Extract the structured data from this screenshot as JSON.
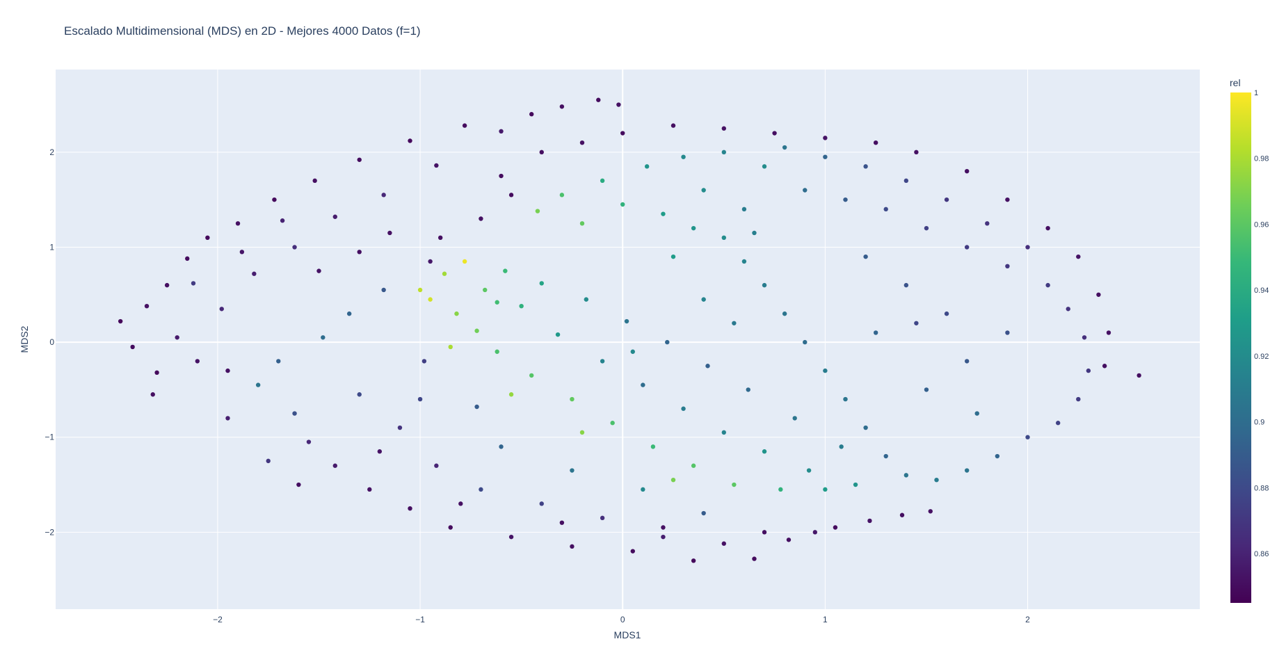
{
  "chart_data": {
    "type": "scatter",
    "title": "Escalado Multidimensional (MDS) en 2D - Mejores 4000 Datos (f=1)",
    "xlabel": "MDS1",
    "ylabel": "MDS2",
    "xlim": [
      -2.8,
      2.85
    ],
    "ylim": [
      -2.81,
      2.87
    ],
    "x_ticks": [
      {
        "value": -2,
        "label": "−2"
      },
      {
        "value": -1,
        "label": "−1"
      },
      {
        "value": 0,
        "label": "0"
      },
      {
        "value": 1,
        "label": "1"
      },
      {
        "value": 2,
        "label": "2"
      }
    ],
    "y_ticks": [
      {
        "value": -2,
        "label": "−2"
      },
      {
        "value": -1,
        "label": "−1"
      },
      {
        "value": 0,
        "label": "0"
      },
      {
        "value": 1,
        "label": "1"
      },
      {
        "value": 2,
        "label": "2"
      }
    ],
    "grid": true,
    "colorbar": {
      "title": "rel",
      "colorscale": "viridis",
      "range": [
        0.845,
        1.0
      ],
      "ticks": [
        {
          "value": 1.0,
          "label": "1"
        },
        {
          "value": 0.98,
          "label": "0.98"
        },
        {
          "value": 0.96,
          "label": "0.96"
        },
        {
          "value": 0.94,
          "label": "0.94"
        },
        {
          "value": 0.92,
          "label": "0.92"
        },
        {
          "value": 0.9,
          "label": "0.9"
        },
        {
          "value": 0.88,
          "label": "0.88"
        },
        {
          "value": 0.86,
          "label": "0.86"
        }
      ]
    },
    "series": [
      {
        "columns": [
          "x",
          "y",
          "rel"
        ],
        "points": [
          [
            -2.48,
            0.22,
            0.848
          ],
          [
            -2.42,
            -0.05,
            0.85
          ],
          [
            -2.35,
            0.38,
            0.852
          ],
          [
            -2.3,
            -0.32,
            0.849
          ],
          [
            -2.25,
            0.6,
            0.851
          ],
          [
            -2.2,
            0.05,
            0.856
          ],
          [
            -2.15,
            0.88,
            0.85
          ],
          [
            -2.1,
            -0.2,
            0.853
          ],
          [
            -2.05,
            1.1,
            0.849
          ],
          [
            -1.98,
            0.35,
            0.862
          ],
          [
            -1.9,
            1.25,
            0.852
          ],
          [
            -1.82,
            0.72,
            0.858
          ],
          [
            -1.72,
            1.5,
            0.849
          ],
          [
            -1.62,
            1.0,
            0.866
          ],
          [
            -1.52,
            1.7,
            0.851
          ],
          [
            -1.42,
            1.32,
            0.857
          ],
          [
            -1.3,
            1.92,
            0.85
          ],
          [
            -1.18,
            1.55,
            0.862
          ],
          [
            -1.05,
            2.12,
            0.849
          ],
          [
            -0.92,
            1.86,
            0.853
          ],
          [
            -0.78,
            2.28,
            0.85
          ],
          [
            -0.6,
            2.22,
            0.856
          ],
          [
            -0.45,
            2.4,
            0.849
          ],
          [
            -0.3,
            2.48,
            0.851
          ],
          [
            -0.12,
            2.55,
            0.85
          ],
          [
            -0.02,
            2.5,
            0.852
          ],
          [
            -2.32,
            -0.55,
            0.851
          ],
          [
            -2.12,
            0.62,
            0.872
          ],
          [
            -1.88,
            0.95,
            0.854
          ],
          [
            -1.68,
            1.28,
            0.86
          ],
          [
            -1.8,
            -0.45,
            0.905
          ],
          [
            -1.7,
            -0.2,
            0.892
          ],
          [
            -1.62,
            -0.75,
            0.884
          ],
          [
            -1.55,
            -1.05,
            0.862
          ],
          [
            -1.48,
            0.05,
            0.9
          ],
          [
            -1.42,
            -1.3,
            0.856
          ],
          [
            -1.35,
            0.3,
            0.895
          ],
          [
            -1.3,
            -0.55,
            0.88
          ],
          [
            -1.25,
            -1.55,
            0.852
          ],
          [
            -1.18,
            0.55,
            0.888
          ],
          [
            -1.1,
            -0.9,
            0.868
          ],
          [
            -1.05,
            -1.75,
            0.851
          ],
          [
            -0.98,
            -0.2,
            0.874
          ],
          [
            -0.92,
            -1.3,
            0.861
          ],
          [
            -0.85,
            -1.95,
            0.85
          ],
          [
            -0.7,
            -1.55,
            0.88
          ],
          [
            -0.55,
            -2.05,
            0.853
          ],
          [
            -0.4,
            -1.7,
            0.876
          ],
          [
            -0.25,
            -2.15,
            0.851
          ],
          [
            -0.1,
            -1.85,
            0.866
          ],
          [
            0.05,
            -2.2,
            0.85
          ],
          [
            0.2,
            -2.05,
            0.858
          ],
          [
            0.35,
            -2.3,
            0.849
          ],
          [
            0.5,
            -2.12,
            0.852
          ],
          [
            0.65,
            -2.28,
            0.85
          ],
          [
            0.82,
            -2.08,
            0.851
          ],
          [
            0.95,
            -2.0,
            0.855
          ],
          [
            1.05,
            -1.95,
            0.85
          ],
          [
            1.22,
            -1.88,
            0.853
          ],
          [
            1.38,
            -1.82,
            0.851
          ],
          [
            1.52,
            -1.78,
            0.852
          ],
          [
            -1.95,
            -0.8,
            0.858
          ],
          [
            -1.6,
            -1.5,
            0.851
          ],
          [
            -1.75,
            -1.25,
            0.87
          ],
          [
            -0.72,
            -0.68,
            0.89
          ],
          [
            -1.0,
            0.55,
            0.985
          ],
          [
            -0.95,
            0.45,
            0.99
          ],
          [
            -0.88,
            0.72,
            0.978
          ],
          [
            -0.82,
            0.3,
            0.972
          ],
          [
            -0.78,
            0.85,
            0.996
          ],
          [
            -0.72,
            0.12,
            0.966
          ],
          [
            -0.68,
            0.55,
            0.96
          ],
          [
            -0.62,
            -0.1,
            0.955
          ],
          [
            -0.58,
            0.75,
            0.95
          ],
          [
            -0.5,
            0.38,
            0.944
          ],
          [
            -0.45,
            -0.35,
            0.958
          ],
          [
            -0.4,
            0.62,
            0.935
          ],
          [
            -0.32,
            0.08,
            0.928
          ],
          [
            -0.25,
            -0.6,
            0.962
          ],
          [
            -0.18,
            0.45,
            0.92
          ],
          [
            -0.1,
            -0.2,
            0.915
          ],
          [
            -0.05,
            -0.85,
            0.955
          ],
          [
            0.02,
            0.22,
            0.905
          ],
          [
            0.1,
            -0.45,
            0.9
          ],
          [
            0.15,
            -1.1,
            0.95
          ],
          [
            0.22,
            0.0,
            0.895
          ],
          [
            0.3,
            -0.7,
            0.91
          ],
          [
            0.35,
            -1.3,
            0.958
          ],
          [
            0.42,
            -0.25,
            0.892
          ],
          [
            0.5,
            -0.95,
            0.915
          ],
          [
            0.55,
            -1.5,
            0.96
          ],
          [
            0.62,
            -0.5,
            0.898
          ],
          [
            0.7,
            -1.15,
            0.925
          ],
          [
            0.78,
            -1.55,
            0.945
          ],
          [
            0.85,
            -0.8,
            0.905
          ],
          [
            0.92,
            -1.35,
            0.92
          ],
          [
            1.0,
            -1.55,
            0.93
          ],
          [
            1.08,
            -1.1,
            0.91
          ],
          [
            1.15,
            -1.5,
            0.925
          ],
          [
            -0.85,
            -0.05,
            0.98
          ],
          [
            -0.55,
            -0.55,
            0.975
          ],
          [
            -0.2,
            -0.95,
            0.972
          ],
          [
            0.25,
            -1.45,
            0.968
          ],
          [
            -0.62,
            0.42,
            0.952
          ],
          [
            0.05,
            -0.1,
            0.918
          ],
          [
            -0.42,
            1.38,
            0.968
          ],
          [
            -0.3,
            1.55,
            0.955
          ],
          [
            -0.2,
            1.25,
            0.962
          ],
          [
            -0.1,
            1.7,
            0.94
          ],
          [
            0.0,
            1.45,
            0.945
          ],
          [
            0.12,
            1.85,
            0.925
          ],
          [
            0.2,
            1.35,
            0.93
          ],
          [
            0.3,
            1.95,
            0.918
          ],
          [
            0.4,
            1.6,
            0.92
          ],
          [
            0.5,
            2.0,
            0.915
          ],
          [
            0.6,
            1.4,
            0.91
          ],
          [
            0.7,
            1.85,
            0.92
          ],
          [
            0.8,
            2.05,
            0.905
          ],
          [
            0.9,
            1.6,
            0.9
          ],
          [
            1.0,
            1.95,
            0.895
          ],
          [
            1.1,
            1.5,
            0.89
          ],
          [
            1.2,
            1.85,
            0.885
          ],
          [
            1.3,
            1.4,
            0.88
          ],
          [
            1.4,
            1.7,
            0.878
          ],
          [
            1.5,
            1.2,
            0.875
          ],
          [
            1.6,
            1.5,
            0.87
          ],
          [
            1.7,
            1.0,
            0.872
          ],
          [
            1.8,
            1.25,
            0.868
          ],
          [
            1.9,
            0.8,
            0.87
          ],
          [
            2.0,
            1.0,
            0.866
          ],
          [
            2.1,
            0.6,
            0.872
          ],
          [
            2.2,
            0.35,
            0.868
          ],
          [
            2.28,
            0.05,
            0.866
          ],
          [
            2.3,
            -0.3,
            0.87
          ],
          [
            2.25,
            -0.6,
            0.872
          ],
          [
            2.15,
            -0.85,
            0.876
          ],
          [
            2.0,
            -1.0,
            0.88
          ],
          [
            1.85,
            -1.2,
            0.895
          ],
          [
            1.7,
            -1.35,
            0.905
          ],
          [
            1.55,
            -1.45,
            0.91
          ],
          [
            1.4,
            -1.4,
            0.905
          ],
          [
            1.3,
            -1.2,
            0.895
          ],
          [
            1.2,
            -0.9,
            0.9
          ],
          [
            1.1,
            -0.6,
            0.905
          ],
          [
            1.0,
            -0.3,
            0.91
          ],
          [
            0.9,
            0.0,
            0.9
          ],
          [
            0.8,
            0.3,
            0.905
          ],
          [
            0.7,
            0.6,
            0.91
          ],
          [
            0.6,
            0.85,
            0.915
          ],
          [
            0.5,
            1.1,
            0.92
          ],
          [
            0.35,
            1.2,
            0.925
          ],
          [
            1.5,
            -0.5,
            0.892
          ],
          [
            1.7,
            -0.2,
            0.888
          ],
          [
            1.9,
            0.1,
            0.884
          ],
          [
            1.6,
            0.3,
            0.88
          ],
          [
            1.4,
            0.6,
            0.885
          ],
          [
            1.2,
            0.9,
            0.89
          ],
          [
            1.45,
            0.2,
            0.878
          ],
          [
            1.25,
            0.1,
            0.895
          ],
          [
            1.75,
            -0.75,
            0.9
          ],
          [
            0.4,
            0.45,
            0.915
          ],
          [
            0.55,
            0.2,
            0.908
          ],
          [
            0.25,
            0.9,
            0.93
          ],
          [
            0.65,
            1.15,
            0.912
          ],
          [
            2.55,
            -0.35,
            0.851
          ],
          [
            -0.55,
            1.55,
            0.85
          ],
          [
            -0.7,
            1.3,
            0.852
          ],
          [
            -0.9,
            1.1,
            0.851
          ],
          [
            -0.95,
            0.85,
            0.855
          ],
          [
            -0.6,
            1.75,
            0.85
          ],
          [
            -0.4,
            2.0,
            0.851
          ],
          [
            -0.2,
            2.1,
            0.852
          ],
          [
            0.0,
            2.2,
            0.85
          ],
          [
            0.25,
            2.28,
            0.851
          ],
          [
            0.5,
            2.25,
            0.852
          ],
          [
            0.75,
            2.2,
            0.851
          ],
          [
            1.0,
            2.15,
            0.853
          ],
          [
            1.25,
            2.1,
            0.851
          ],
          [
            1.45,
            2.0,
            0.852
          ],
          [
            1.7,
            1.8,
            0.851
          ],
          [
            1.9,
            1.5,
            0.852
          ],
          [
            2.1,
            1.2,
            0.851
          ],
          [
            2.25,
            0.9,
            0.853
          ],
          [
            2.35,
            0.5,
            0.851
          ],
          [
            2.4,
            0.1,
            0.852
          ],
          [
            2.38,
            -0.25,
            0.851
          ],
          [
            -1.5,
            0.75,
            0.853
          ],
          [
            -1.3,
            0.95,
            0.851
          ],
          [
            -1.15,
            1.15,
            0.852
          ],
          [
            -1.95,
            -0.3,
            0.852
          ],
          [
            -1.2,
            -1.15,
            0.853
          ],
          [
            -0.8,
            -1.7,
            0.852
          ],
          [
            -0.3,
            -1.9,
            0.851
          ],
          [
            0.2,
            -1.95,
            0.852
          ],
          [
            0.7,
            -2.0,
            0.851
          ],
          [
            0.4,
            -1.8,
            0.89
          ],
          [
            0.1,
            -1.55,
            0.918
          ],
          [
            -0.25,
            -1.35,
            0.905
          ],
          [
            -0.6,
            -1.1,
            0.895
          ],
          [
            -1.0,
            -0.6,
            0.878
          ]
        ]
      }
    ]
  }
}
